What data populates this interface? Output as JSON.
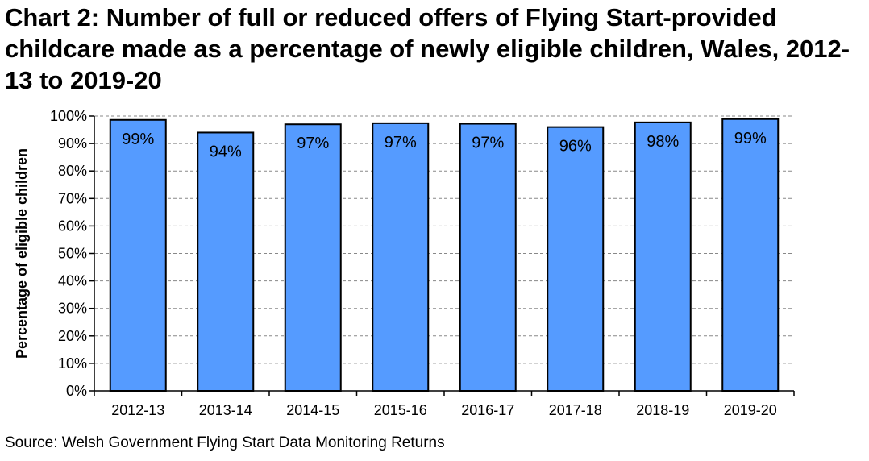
{
  "chart_data": {
    "type": "bar",
    "title": "Chart 2: Number of full or reduced offers of Flying Start-provided childcare made as a percentage of newly eligible children, Wales, 2012-13 to 2019-20",
    "xlabel": "",
    "ylabel": "Percentage of eligible children",
    "ylim": [
      0,
      100
    ],
    "yticks": [
      "0%",
      "10%",
      "20%",
      "30%",
      "40%",
      "50%",
      "60%",
      "70%",
      "80%",
      "90%",
      "100%"
    ],
    "ytick_values": [
      0,
      10,
      20,
      30,
      40,
      50,
      60,
      70,
      80,
      90,
      100
    ],
    "grid": true,
    "categories": [
      "2012-13",
      "2013-14",
      "2014-15",
      "2015-16",
      "2016-17",
      "2017-18",
      "2018-19",
      "2019-20"
    ],
    "values": [
      98.6,
      94.0,
      97.0,
      97.4,
      97.2,
      96.0,
      97.7,
      98.9
    ],
    "data_labels": [
      "99%",
      "94%",
      "97%",
      "97%",
      "97%",
      "96%",
      "98%",
      "99%"
    ],
    "bar_color": "#559BFF",
    "source": "Source: Welsh Government Flying Start Data Monitoring Returns"
  }
}
